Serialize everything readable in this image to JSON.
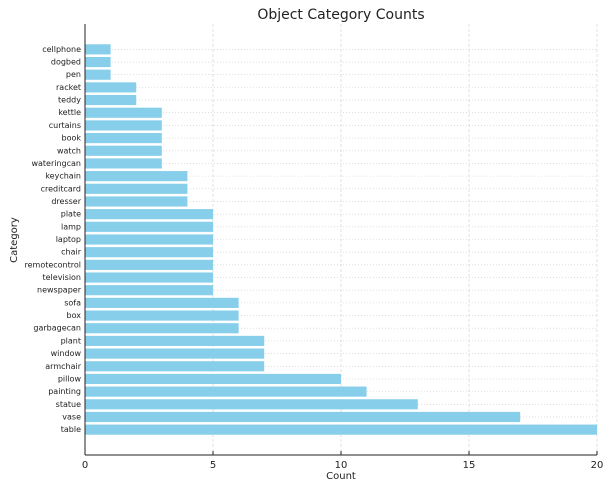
{
  "chart_data": {
    "type": "barh",
    "title": "Object Category Counts",
    "x_label": "Count",
    "y_label": "Category",
    "categories": [
      "cellphone",
      "dogbed",
      "pen",
      "racket",
      "teddy",
      "kettle",
      "curtains",
      "book",
      "watch",
      "wateringcan",
      "keychain",
      "creditcard",
      "dresser",
      "plate",
      "lamp",
      "laptop",
      "chair",
      "remotecontrol",
      "television",
      "newspaper",
      "sofa",
      "box",
      "garbagecan",
      "plant",
      "window",
      "armchair",
      "pillow",
      "painting",
      "statue",
      "vase",
      "table"
    ],
    "values": [
      1,
      1,
      1,
      2,
      2,
      3,
      3,
      3,
      3,
      3,
      4,
      4,
      4,
      5,
      5,
      5,
      5,
      5,
      5,
      5,
      6,
      6,
      6,
      7,
      7,
      7,
      10,
      11,
      13,
      17,
      20
    ],
    "color": "#87ceeb",
    "xlim": [
      0,
      20
    ],
    "xticks": [
      0,
      5,
      10,
      15,
      20
    ],
    "grid": true
  }
}
